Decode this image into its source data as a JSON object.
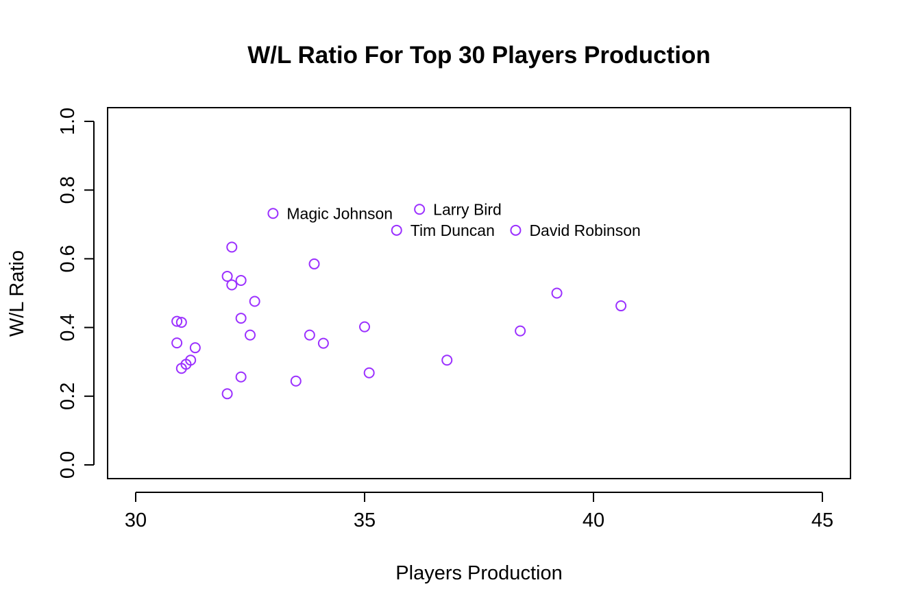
{
  "chart_data": {
    "type": "scatter",
    "title": "W/L Ratio For Top 30 Players Production",
    "xlabel": "Players Production",
    "ylabel": "W/L Ratio",
    "xlim": [
      30,
      45
    ],
    "ylim": [
      0.0,
      1.0
    ],
    "xticks": [
      "30",
      "35",
      "40",
      "45"
    ],
    "yticks": [
      "0.0",
      "0.2",
      "0.4",
      "0.6",
      "0.8",
      "1.0"
    ],
    "grid": false,
    "point_color": "#9B30FF",
    "points": [
      {
        "x": 33.0,
        "y": 0.732,
        "label": "Magic Johnson"
      },
      {
        "x": 36.2,
        "y": 0.744,
        "label": "Larry Bird"
      },
      {
        "x": 35.7,
        "y": 0.683,
        "label": "Tim Duncan"
      },
      {
        "x": 38.3,
        "y": 0.683,
        "label": "David Robinson"
      },
      {
        "x": 32.1,
        "y": 0.634
      },
      {
        "x": 33.9,
        "y": 0.585
      },
      {
        "x": 32.0,
        "y": 0.549
      },
      {
        "x": 32.3,
        "y": 0.537
      },
      {
        "x": 32.1,
        "y": 0.524
      },
      {
        "x": 39.2,
        "y": 0.5
      },
      {
        "x": 32.6,
        "y": 0.476
      },
      {
        "x": 40.6,
        "y": 0.463
      },
      {
        "x": 32.3,
        "y": 0.427
      },
      {
        "x": 30.9,
        "y": 0.418
      },
      {
        "x": 31.0,
        "y": 0.415
      },
      {
        "x": 35.0,
        "y": 0.402
      },
      {
        "x": 38.4,
        "y": 0.39
      },
      {
        "x": 32.5,
        "y": 0.378
      },
      {
        "x": 33.8,
        "y": 0.378
      },
      {
        "x": 30.9,
        "y": 0.355
      },
      {
        "x": 34.1,
        "y": 0.354
      },
      {
        "x": 31.3,
        "y": 0.341
      },
      {
        "x": 36.8,
        "y": 0.305
      },
      {
        "x": 31.2,
        "y": 0.305
      },
      {
        "x": 31.1,
        "y": 0.293
      },
      {
        "x": 31.0,
        "y": 0.281
      },
      {
        "x": 35.1,
        "y": 0.268
      },
      {
        "x": 32.3,
        "y": 0.256
      },
      {
        "x": 33.5,
        "y": 0.244
      },
      {
        "x": 32.0,
        "y": 0.207
      }
    ]
  }
}
